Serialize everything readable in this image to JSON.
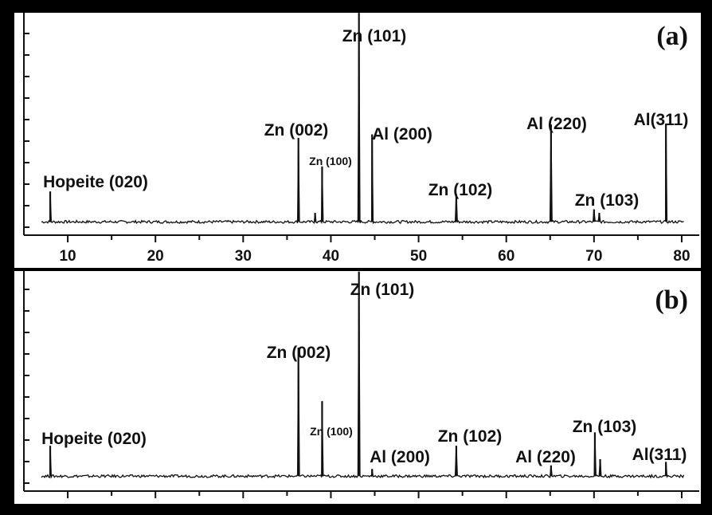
{
  "chart_data": [
    {
      "type": "line",
      "panel_label": "(a)",
      "xlim": [
        5,
        82
      ],
      "x_ticks": [
        10,
        20,
        30,
        40,
        50,
        60,
        70,
        80
      ],
      "baseline": 6,
      "peaks": [
        {
          "x": 8.0,
          "y": 40,
          "label": "Hopeite (020)",
          "small": false
        },
        {
          "x": 36.3,
          "y": 100,
          "label": "Zn (002)",
          "small": false
        },
        {
          "x": 38.2,
          "y": 16,
          "label": "",
          "small": false
        },
        {
          "x": 39.0,
          "y": 68,
          "label": "Zn (100)",
          "small": true
        },
        {
          "x": 43.2,
          "y": 240,
          "label": "Zn (101)",
          "small": false
        },
        {
          "x": 44.7,
          "y": 104,
          "label": "Al (200)",
          "small": false
        },
        {
          "x": 54.3,
          "y": 37,
          "label": "Zn (102)",
          "small": false
        },
        {
          "x": 65.1,
          "y": 115,
          "label": "Al (220)",
          "small": false
        },
        {
          "x": 70.0,
          "y": 20,
          "label": "Zn (103)",
          "small": false
        },
        {
          "x": 70.6,
          "y": 16,
          "label": "",
          "small": false
        },
        {
          "x": 78.2,
          "y": 116,
          "label": "Al(311)",
          "small": false
        }
      ]
    },
    {
      "type": "line",
      "panel_label": "(b)",
      "xlim": [
        5,
        82
      ],
      "x_ticks": [],
      "baseline": 6,
      "peaks": [
        {
          "x": 8.0,
          "y": 40,
          "label": "Hopeite (020)",
          "small": false
        },
        {
          "x": 36.3,
          "y": 150,
          "label": "Zn (002)",
          "small": false
        },
        {
          "x": 39.0,
          "y": 90,
          "label": "Zn (100)",
          "small": true
        },
        {
          "x": 43.2,
          "y": 235,
          "label": "Zn (101)",
          "small": false
        },
        {
          "x": 44.7,
          "y": 14,
          "label": "Al (200)",
          "small": false
        },
        {
          "x": 54.3,
          "y": 40,
          "label": "Zn (102)",
          "small": false
        },
        {
          "x": 65.1,
          "y": 18,
          "label": "Al (220)",
          "small": false
        },
        {
          "x": 70.1,
          "y": 55,
          "label": "Zn (103)",
          "small": false
        },
        {
          "x": 70.7,
          "y": 25,
          "label": "",
          "small": false
        },
        {
          "x": 78.2,
          "y": 22,
          "label": "Al(311)",
          "small": false
        }
      ]
    }
  ]
}
